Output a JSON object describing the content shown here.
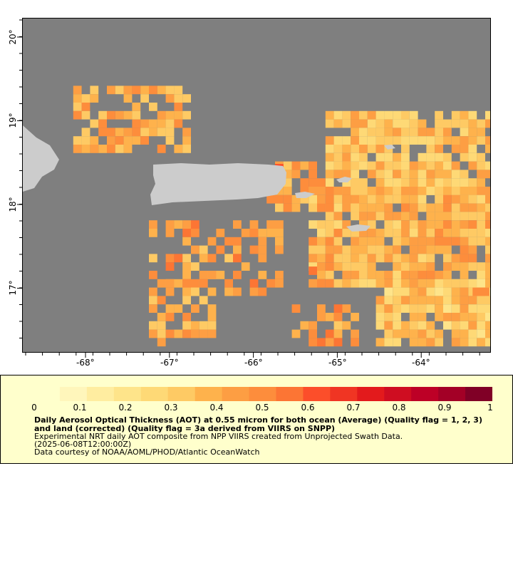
{
  "map": {
    "background_color": "#7f7f7f",
    "land_color": "#cccccc",
    "x_ticks": [
      "-68°",
      "-67°",
      "-66°",
      "-65°",
      "-64°"
    ],
    "y_ticks": [
      "20°",
      "19°",
      "18°",
      "17°"
    ]
  },
  "legend": {
    "colorbar_ticks": [
      "0",
      "0.1",
      "0.2",
      "0.3",
      "0.4",
      "0.5",
      "0.6",
      "0.7",
      "0.8",
      "0.9",
      "1"
    ],
    "colormap": [
      "#ffffcc",
      "#fff6bb",
      "#ffeda0",
      "#fee48a",
      "#fed976",
      "#feca64",
      "#feb24c",
      "#fd9e43",
      "#fd8d3c",
      "#fc7534",
      "#fc4e2a",
      "#f03523",
      "#e31a1c",
      "#cf0d21",
      "#bd0026",
      "#a30026",
      "#800026"
    ],
    "title": "Daily Aerosol Optical Thickness (AOT) at 0.55 micron for both ocean (Average) (Quality flag = 1, 2, 3) and land (corrected) (Quality flag = 3a derived from VIIRS on SNPP)",
    "line1": "Experimental NRT daily AOT composite from NPP VIIRS created from Unprojected Swath Data.",
    "line2": "(2025-06-08T12:00:00Z)",
    "line3": "Data courtesy of NOAA/AOML/PHOD/Atlantic OceanWatch"
  }
}
